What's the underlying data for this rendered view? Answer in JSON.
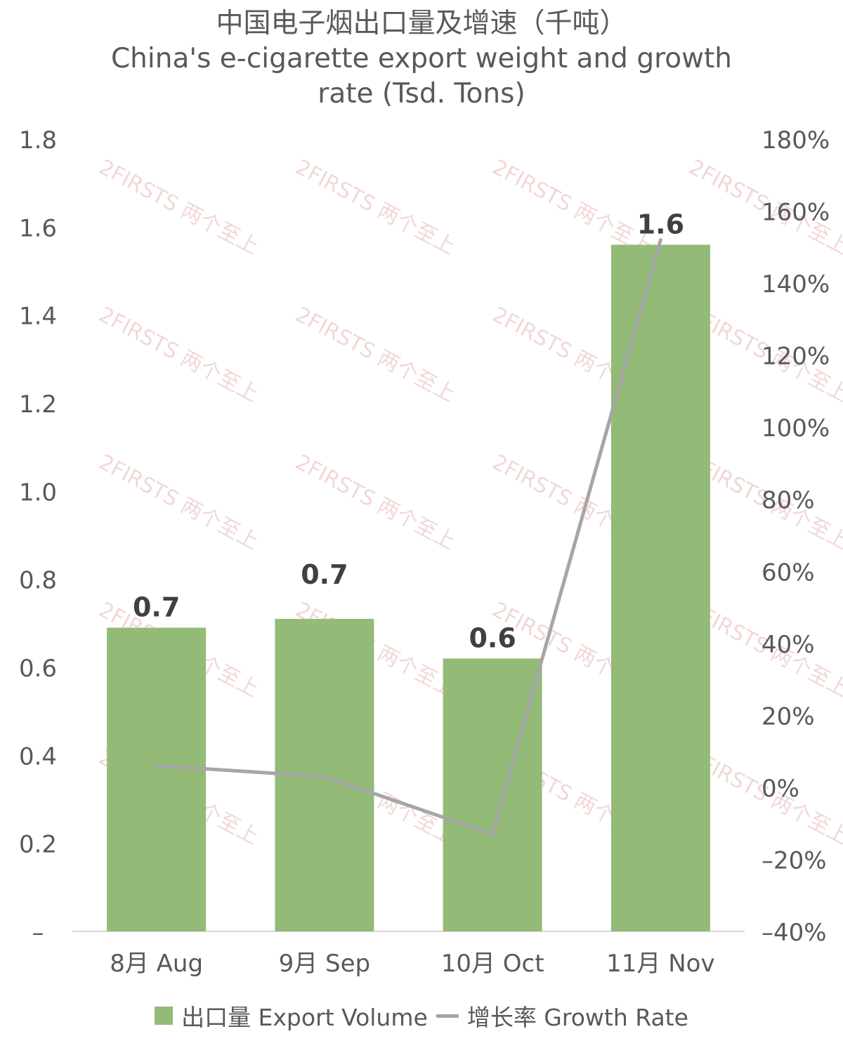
{
  "title": {
    "line1": "中国电子烟出口量及增速（千吨）",
    "line2": "China's e-cigarette export weight and growth",
    "line3": "rate (Tsd. Tons)"
  },
  "watermark": "2FIRSTS 两个至上",
  "colors": {
    "bar": "#93bb77",
    "line": "#a6a6a6",
    "text": "#595959",
    "label": "#404040",
    "axis": "#d9d9d9",
    "watermark": "#e9b8b8"
  },
  "legend": {
    "bar_label": "出口量 Export Volume",
    "line_label": "增长率 Growth Rate"
  },
  "chart_data": {
    "type": "bar",
    "categories": [
      "8月 Aug",
      "9月 Sep",
      "10月 Oct",
      "11月 Nov"
    ],
    "series": [
      {
        "name": "出口量 Export Volume",
        "type": "bar",
        "axis": "left",
        "values": [
          0.69,
          0.71,
          0.62,
          1.56
        ],
        "data_labels": [
          "0.7",
          "0.7",
          "0.6",
          "1.6"
        ]
      },
      {
        "name": "增长率 Growth Rate",
        "type": "line",
        "axis": "right",
        "values": [
          6,
          3,
          -13,
          152
        ]
      }
    ],
    "y_left": {
      "ticks": [
        0,
        0.2,
        0.4,
        0.6,
        0.8,
        1.0,
        1.2,
        1.4,
        1.6,
        1.8
      ],
      "tick_labels": [
        "–",
        "0.2",
        "0.4",
        "0.6",
        "0.8",
        "1.0",
        "1.2",
        "1.4",
        "1.6",
        "1.8"
      ],
      "ylim": [
        0,
        1.8
      ]
    },
    "y_right": {
      "ticks": [
        -40,
        -20,
        0,
        20,
        40,
        60,
        80,
        100,
        120,
        140,
        160,
        180
      ],
      "tick_labels": [
        "–40%",
        "–20%",
        "0%",
        "20%",
        "40%",
        "60%",
        "80%",
        "100%",
        "120%",
        "140%",
        "160%",
        "180%"
      ],
      "ylim": [
        -40,
        180
      ]
    },
    "grid": false,
    "legend_position": "bottom"
  }
}
